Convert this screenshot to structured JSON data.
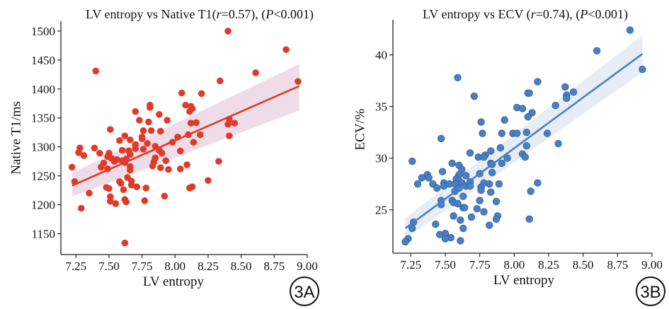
{
  "chart_data": [
    {
      "type": "scatter",
      "panel_label": "3A",
      "title_segments": [
        {
          "text": "LV entropy vs Native T1(",
          "italic": false
        },
        {
          "text": "r",
          "italic": true
        },
        {
          "text": "=0.57), (",
          "italic": false
        },
        {
          "text": "P",
          "italic": true
        },
        {
          "text": "<0.001)",
          "italic": false
        }
      ],
      "xlabel": "LV entropy",
      "ylabel": "Native T1/ms",
      "xlim": [
        7.136,
        9.0
      ],
      "ylim": [
        1114,
        1517
      ],
      "xticks": [
        "7.25",
        "7.50",
        "7.75",
        "8.00",
        "8.25",
        "8.50",
        "8.75",
        "9.00"
      ],
      "yticks": [
        "1150",
        "1200",
        "1250",
        "1300",
        "1350",
        "1400",
        "1450",
        "1500"
      ],
      "color": "#e03a28",
      "band_color": "#d9b3cc",
      "fit_line": {
        "x": [
          7.22,
          8.94
        ],
        "y": [
          1233,
          1405
        ]
      },
      "ci_band": {
        "x": [
          7.22,
          8.94
        ],
        "upper": [
          1255,
          1443
        ],
        "lower": [
          1214,
          1363
        ]
      },
      "points": [
        [
          8.4,
          1500
        ],
        [
          8.84,
          1468
        ],
        [
          7.4,
          1431
        ],
        [
          8.61,
          1428
        ],
        [
          8.34,
          1414
        ],
        [
          8.93,
          1413
        ],
        [
          8.05,
          1393
        ],
        [
          8.2,
          1392
        ],
        [
          7.81,
          1372
        ],
        [
          7.81,
          1368
        ],
        [
          8.08,
          1372
        ],
        [
          8.12,
          1370
        ],
        [
          8.13,
          1366
        ],
        [
          8.11,
          1361
        ],
        [
          7.7,
          1361
        ],
        [
          7.88,
          1356
        ],
        [
          7.73,
          1346
        ],
        [
          7.94,
          1346
        ],
        [
          7.8,
          1343
        ],
        [
          8.12,
          1341
        ],
        [
          8.16,
          1342
        ],
        [
          8.45,
          1341
        ],
        [
          8.41,
          1348
        ],
        [
          8.4,
          1339
        ],
        [
          8.41,
          1319
        ],
        [
          8.19,
          1321
        ],
        [
          8.1,
          1321
        ],
        [
          7.51,
          1330
        ],
        [
          7.76,
          1328
        ],
        [
          7.82,
          1328
        ],
        [
          7.89,
          1327
        ],
        [
          7.62,
          1319
        ],
        [
          7.66,
          1312
        ],
        [
          7.58,
          1311
        ],
        [
          7.75,
          1317
        ],
        [
          8.02,
          1317
        ],
        [
          7.75,
          1314
        ],
        [
          8.14,
          1308
        ],
        [
          7.98,
          1308
        ],
        [
          7.79,
          1306
        ],
        [
          7.7,
          1304
        ],
        [
          7.7,
          1297
        ],
        [
          7.76,
          1296
        ],
        [
          7.85,
          1301
        ],
        [
          7.28,
          1298
        ],
        [
          7.39,
          1298
        ],
        [
          7.27,
          1290
        ],
        [
          7.31,
          1285
        ],
        [
          7.43,
          1289
        ],
        [
          7.5,
          1289
        ],
        [
          7.6,
          1294
        ],
        [
          7.65,
          1293
        ],
        [
          8.04,
          1293
        ],
        [
          7.88,
          1294
        ],
        [
          7.9,
          1289
        ],
        [
          7.66,
          1287
        ],
        [
          7.49,
          1283
        ],
        [
          7.52,
          1280
        ],
        [
          7.56,
          1278
        ],
        [
          7.6,
          1276
        ],
        [
          7.63,
          1279
        ],
        [
          7.54,
          1275
        ],
        [
          7.62,
          1273
        ],
        [
          7.85,
          1281
        ],
        [
          7.84,
          1274
        ],
        [
          7.93,
          1276
        ],
        [
          7.46,
          1272
        ],
        [
          7.44,
          1265
        ],
        [
          7.83,
          1267
        ],
        [
          7.22,
          1265
        ],
        [
          7.66,
          1266
        ],
        [
          7.66,
          1260
        ],
        [
          7.49,
          1262
        ],
        [
          7.89,
          1264
        ],
        [
          7.95,
          1261
        ],
        [
          8.04,
          1262
        ],
        [
          8.09,
          1269
        ],
        [
          8.33,
          1275
        ],
        [
          7.24,
          1240
        ],
        [
          7.64,
          1247
        ],
        [
          7.67,
          1241
        ],
        [
          7.58,
          1240
        ],
        [
          7.59,
          1237
        ],
        [
          8.25,
          1242
        ],
        [
          7.67,
          1234
        ],
        [
          7.71,
          1231
        ],
        [
          7.48,
          1230
        ],
        [
          7.5,
          1228
        ],
        [
          7.78,
          1229
        ],
        [
          7.61,
          1226
        ],
        [
          8.13,
          1231
        ],
        [
          8.11,
          1229
        ],
        [
          7.35,
          1220
        ],
        [
          7.51,
          1214
        ],
        [
          7.92,
          1215
        ],
        [
          7.62,
          1209
        ],
        [
          7.51,
          1206
        ],
        [
          7.63,
          1205
        ],
        [
          7.77,
          1207
        ],
        [
          7.55,
          1202
        ],
        [
          7.29,
          1194
        ],
        [
          7.62,
          1134
        ]
      ]
    },
    {
      "type": "scatter",
      "panel_label": "3B",
      "title_segments": [
        {
          "text": "LV entropy vs ECV (",
          "italic": false
        },
        {
          "text": "r",
          "italic": true
        },
        {
          "text": "=0.74), (",
          "italic": false
        },
        {
          "text": "P",
          "italic": true
        },
        {
          "text": "<0.001)",
          "italic": false
        }
      ],
      "xlabel": "LV entropy",
      "ylabel": "ECV/%",
      "xlim": [
        7.12,
        9.0
      ],
      "ylim": [
        20.8,
        43.4
      ],
      "xticks": [
        "7.25",
        "7.50",
        "7.75",
        "8.00",
        "8.25",
        "8.50",
        "8.75",
        "9.00"
      ],
      "yticks": [
        "25",
        "30",
        "35",
        "40"
      ],
      "color": "#4a7fc1",
      "band_color": "#c9d6e8",
      "fit_line": {
        "x": [
          7.21,
          8.93
        ],
        "y": [
          23.2,
          40.1
        ]
      },
      "ci_band": {
        "x": [
          7.21,
          8.93
        ],
        "upper": [
          24.2,
          41.9
        ],
        "lower": [
          22.2,
          38.3
        ]
      },
      "points": [
        [
          8.84,
          42.4
        ],
        [
          8.6,
          40.4
        ],
        [
          8.93,
          38.6
        ],
        [
          7.59,
          37.8
        ],
        [
          7.71,
          36.0
        ],
        [
          8.17,
          37.4
        ],
        [
          8.37,
          36.9
        ],
        [
          8.43,
          36.4
        ],
        [
          8.38,
          36.1
        ],
        [
          8.38,
          35.8
        ],
        [
          8.1,
          36.3
        ],
        [
          8.11,
          36.3
        ],
        [
          8.3,
          35.1
        ],
        [
          8.02,
          34.9
        ],
        [
          8.06,
          34.8
        ],
        [
          8.13,
          34.4
        ],
        [
          8.1,
          34.0
        ],
        [
          7.76,
          33.5
        ],
        [
          7.93,
          33.7
        ],
        [
          7.77,
          32.4
        ],
        [
          7.91,
          32.4
        ],
        [
          7.99,
          32.4
        ],
        [
          8.02,
          32.4
        ],
        [
          8.09,
          32.5
        ],
        [
          8.24,
          32.4
        ],
        [
          7.47,
          31.9
        ],
        [
          8.32,
          31.4
        ],
        [
          8.09,
          31.2
        ],
        [
          7.9,
          31.0
        ],
        [
          7.68,
          30.5
        ],
        [
          7.83,
          30.7
        ],
        [
          7.79,
          30.3
        ],
        [
          7.74,
          30.1
        ],
        [
          7.78,
          30.1
        ],
        [
          8.06,
          30.4
        ],
        [
          8.08,
          30.1
        ],
        [
          7.95,
          30.0
        ],
        [
          7.26,
          29.7
        ],
        [
          7.55,
          29.5
        ],
        [
          7.83,
          29.5
        ],
        [
          7.84,
          29.4
        ],
        [
          7.91,
          29.5
        ],
        [
          7.6,
          29.3
        ],
        [
          7.62,
          28.9
        ],
        [
          7.48,
          28.7
        ],
        [
          7.6,
          28.4
        ],
        [
          7.75,
          28.5
        ],
        [
          7.84,
          28.6
        ],
        [
          7.37,
          28.4
        ],
        [
          7.38,
          28.1
        ],
        [
          7.33,
          28.1
        ],
        [
          7.65,
          28.3
        ],
        [
          7.58,
          28.0
        ],
        [
          7.6,
          27.8
        ],
        [
          7.68,
          27.7
        ],
        [
          7.3,
          27.5
        ],
        [
          7.41,
          27.5
        ],
        [
          7.49,
          27.6
        ],
        [
          7.53,
          27.5
        ],
        [
          7.57,
          27.5
        ],
        [
          7.62,
          27.6
        ],
        [
          7.78,
          27.6
        ],
        [
          7.82,
          27.5
        ],
        [
          7.89,
          27.5
        ],
        [
          8.17,
          27.6
        ],
        [
          7.49,
          27.3
        ],
        [
          7.65,
          27.3
        ],
        [
          7.68,
          27.3
        ],
        [
          7.76,
          27.2
        ],
        [
          7.44,
          27.1
        ],
        [
          7.6,
          27.1
        ],
        [
          7.76,
          26.9
        ],
        [
          7.57,
          26.8
        ],
        [
          8.12,
          26.8
        ],
        [
          7.83,
          26.7
        ],
        [
          7.63,
          26.3
        ],
        [
          7.47,
          25.9
        ],
        [
          7.75,
          25.9
        ],
        [
          7.55,
          25.9
        ],
        [
          7.87,
          25.8
        ],
        [
          7.56,
          25.7
        ],
        [
          7.59,
          25.6
        ],
        [
          7.47,
          25.5
        ],
        [
          7.63,
          25.2
        ],
        [
          7.64,
          25.2
        ],
        [
          7.73,
          25.1
        ],
        [
          7.78,
          24.8
        ],
        [
          7.56,
          24.4
        ],
        [
          7.88,
          24.4
        ],
        [
          7.69,
          24.3
        ],
        [
          7.61,
          24.0
        ],
        [
          7.87,
          24.1
        ],
        [
          8.11,
          24.1
        ],
        [
          7.27,
          23.8
        ],
        [
          7.43,
          23.6
        ],
        [
          7.82,
          23.5
        ],
        [
          7.26,
          23.2
        ],
        [
          7.63,
          23.2
        ],
        [
          7.46,
          22.6
        ],
        [
          7.5,
          22.7
        ],
        [
          7.54,
          22.3
        ],
        [
          7.5,
          22.2
        ],
        [
          7.23,
          22.2
        ],
        [
          7.21,
          21.9
        ],
        [
          7.61,
          22.0
        ]
      ]
    }
  ]
}
